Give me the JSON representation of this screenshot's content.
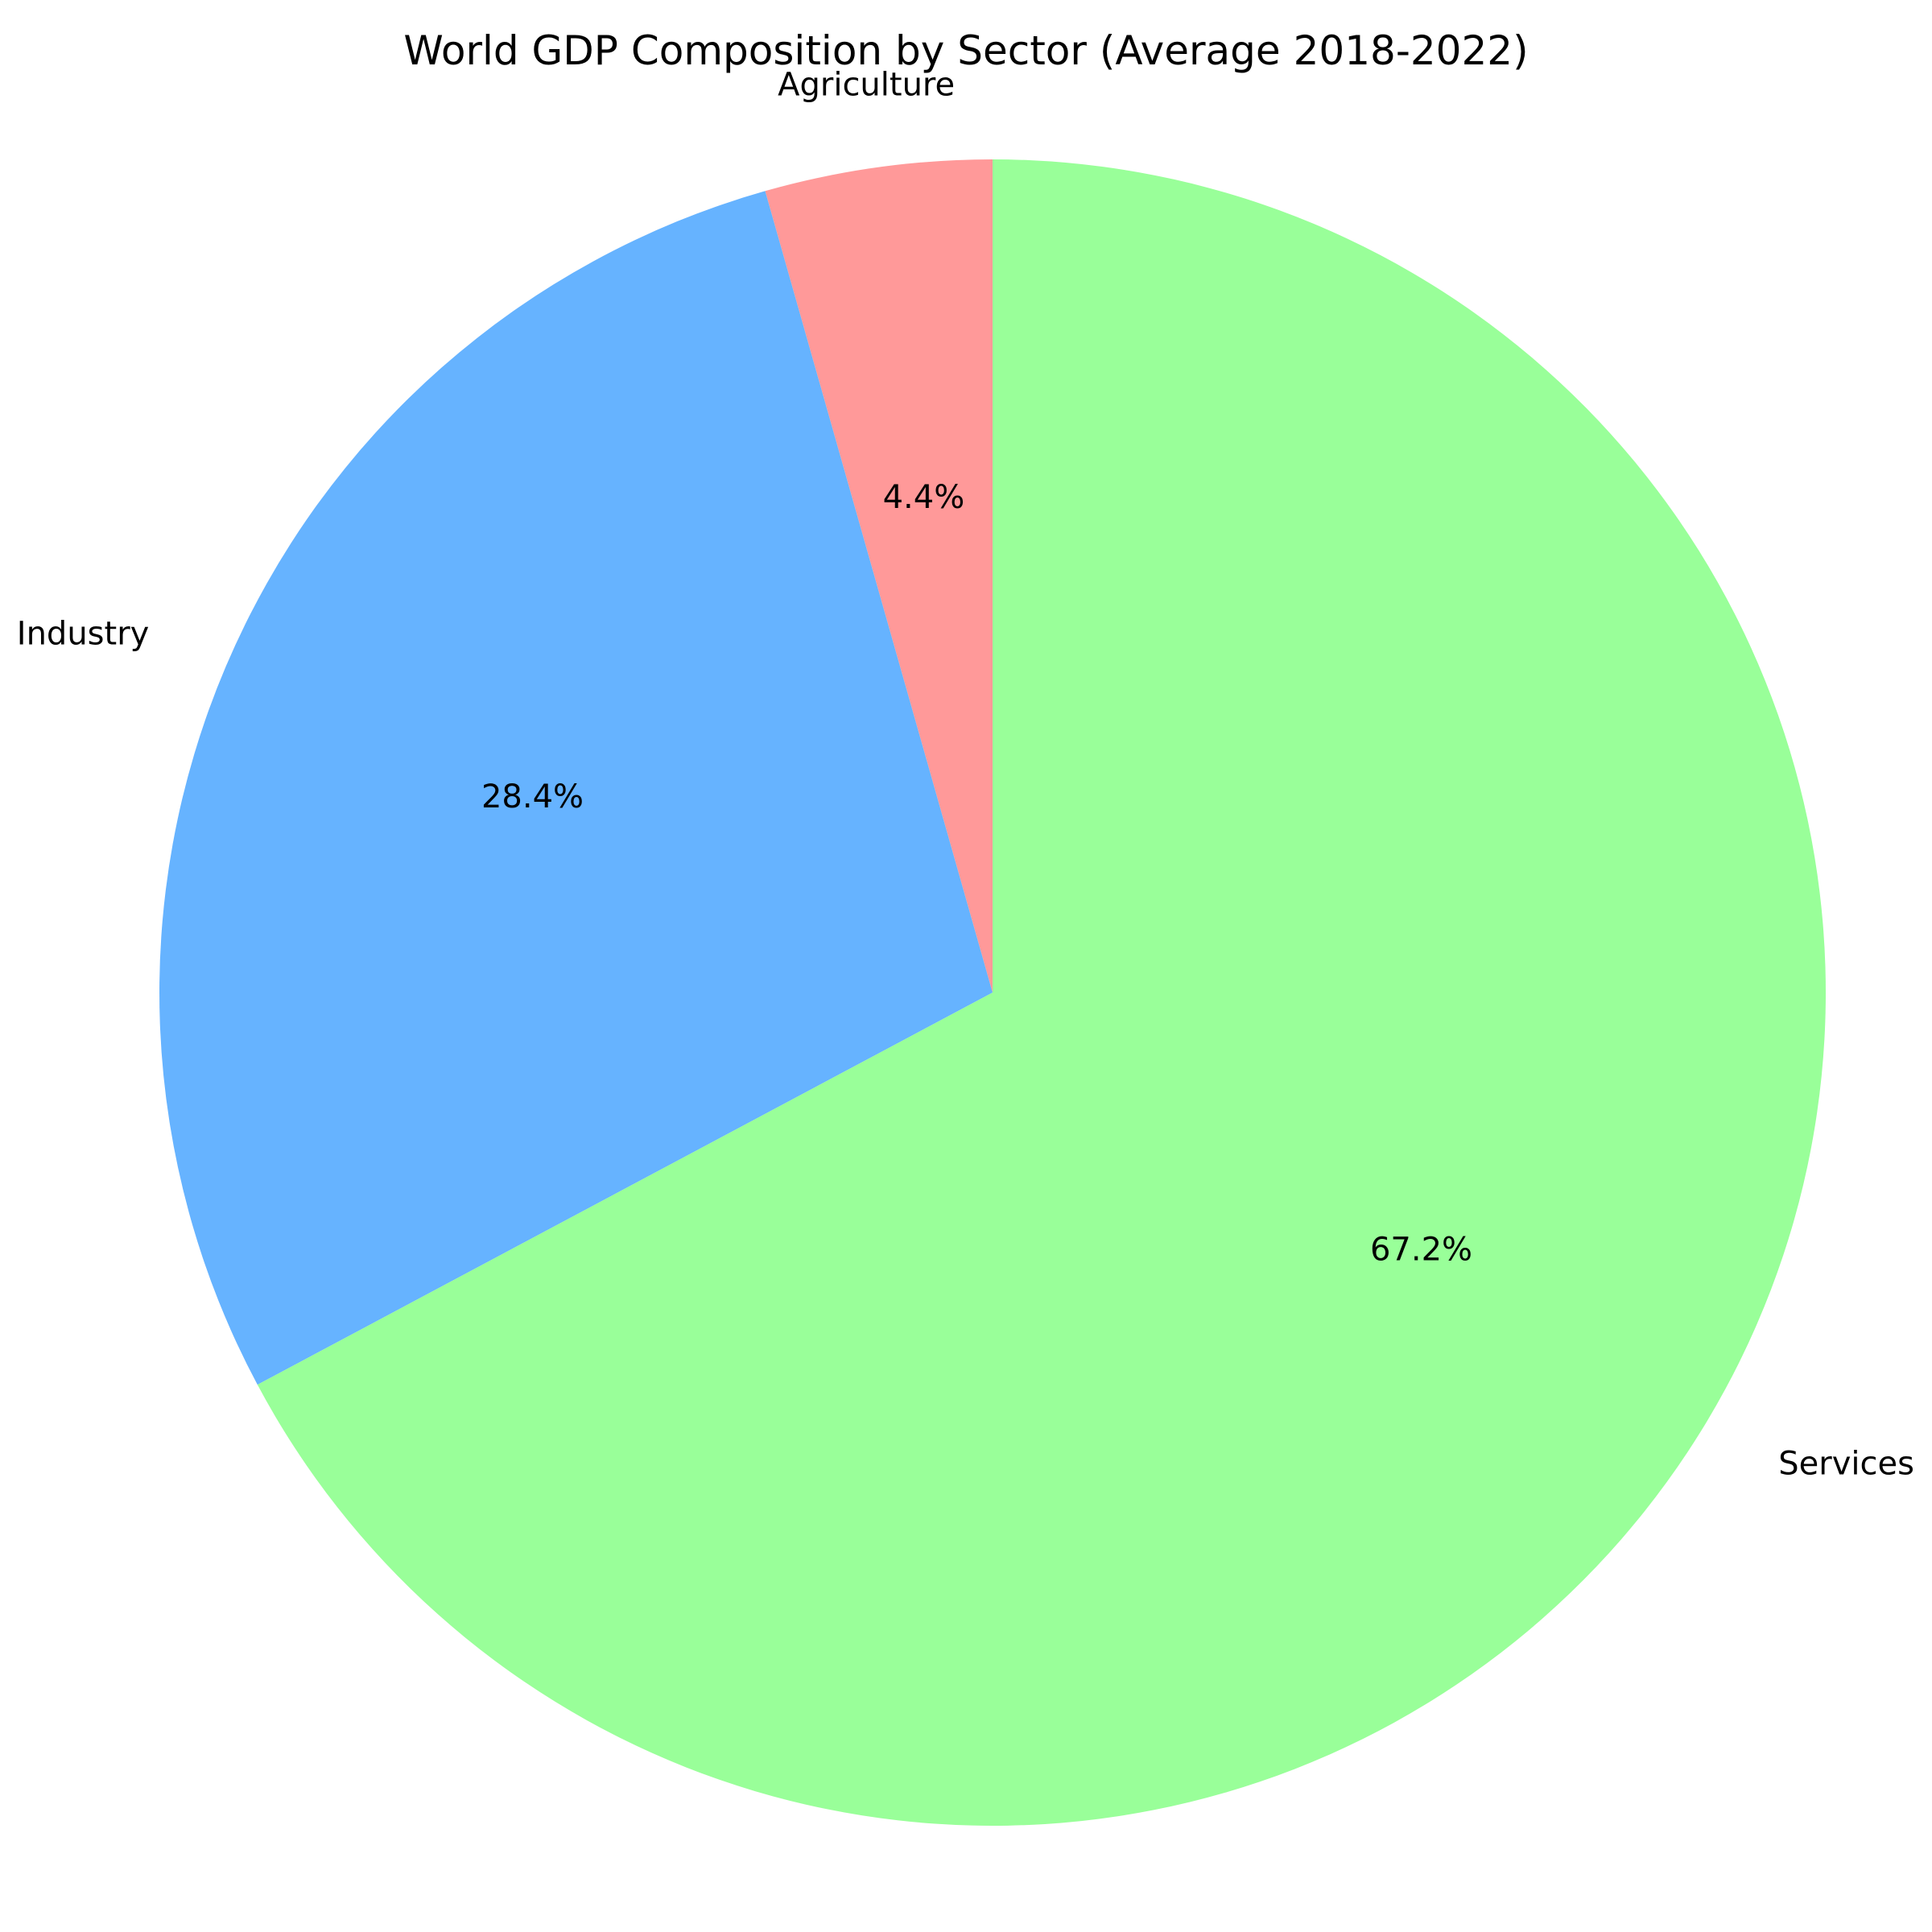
{
  "chart_data": {
    "type": "pie",
    "title": "World GDP Composition by Sector (Average 2018-2022)",
    "slices": [
      {
        "label": "Agriculture",
        "value": 4.4,
        "pct_label": "4.4%",
        "color": "#ff9999"
      },
      {
        "label": "Industry",
        "value": 28.4,
        "pct_label": "28.4%",
        "color": "#66b3ff"
      },
      {
        "label": "Services",
        "value": 67.2,
        "pct_label": "67.2%",
        "color": "#99ff99"
      }
    ],
    "start_angle": 90,
    "direction": "counterclockwise",
    "legend": "none"
  }
}
